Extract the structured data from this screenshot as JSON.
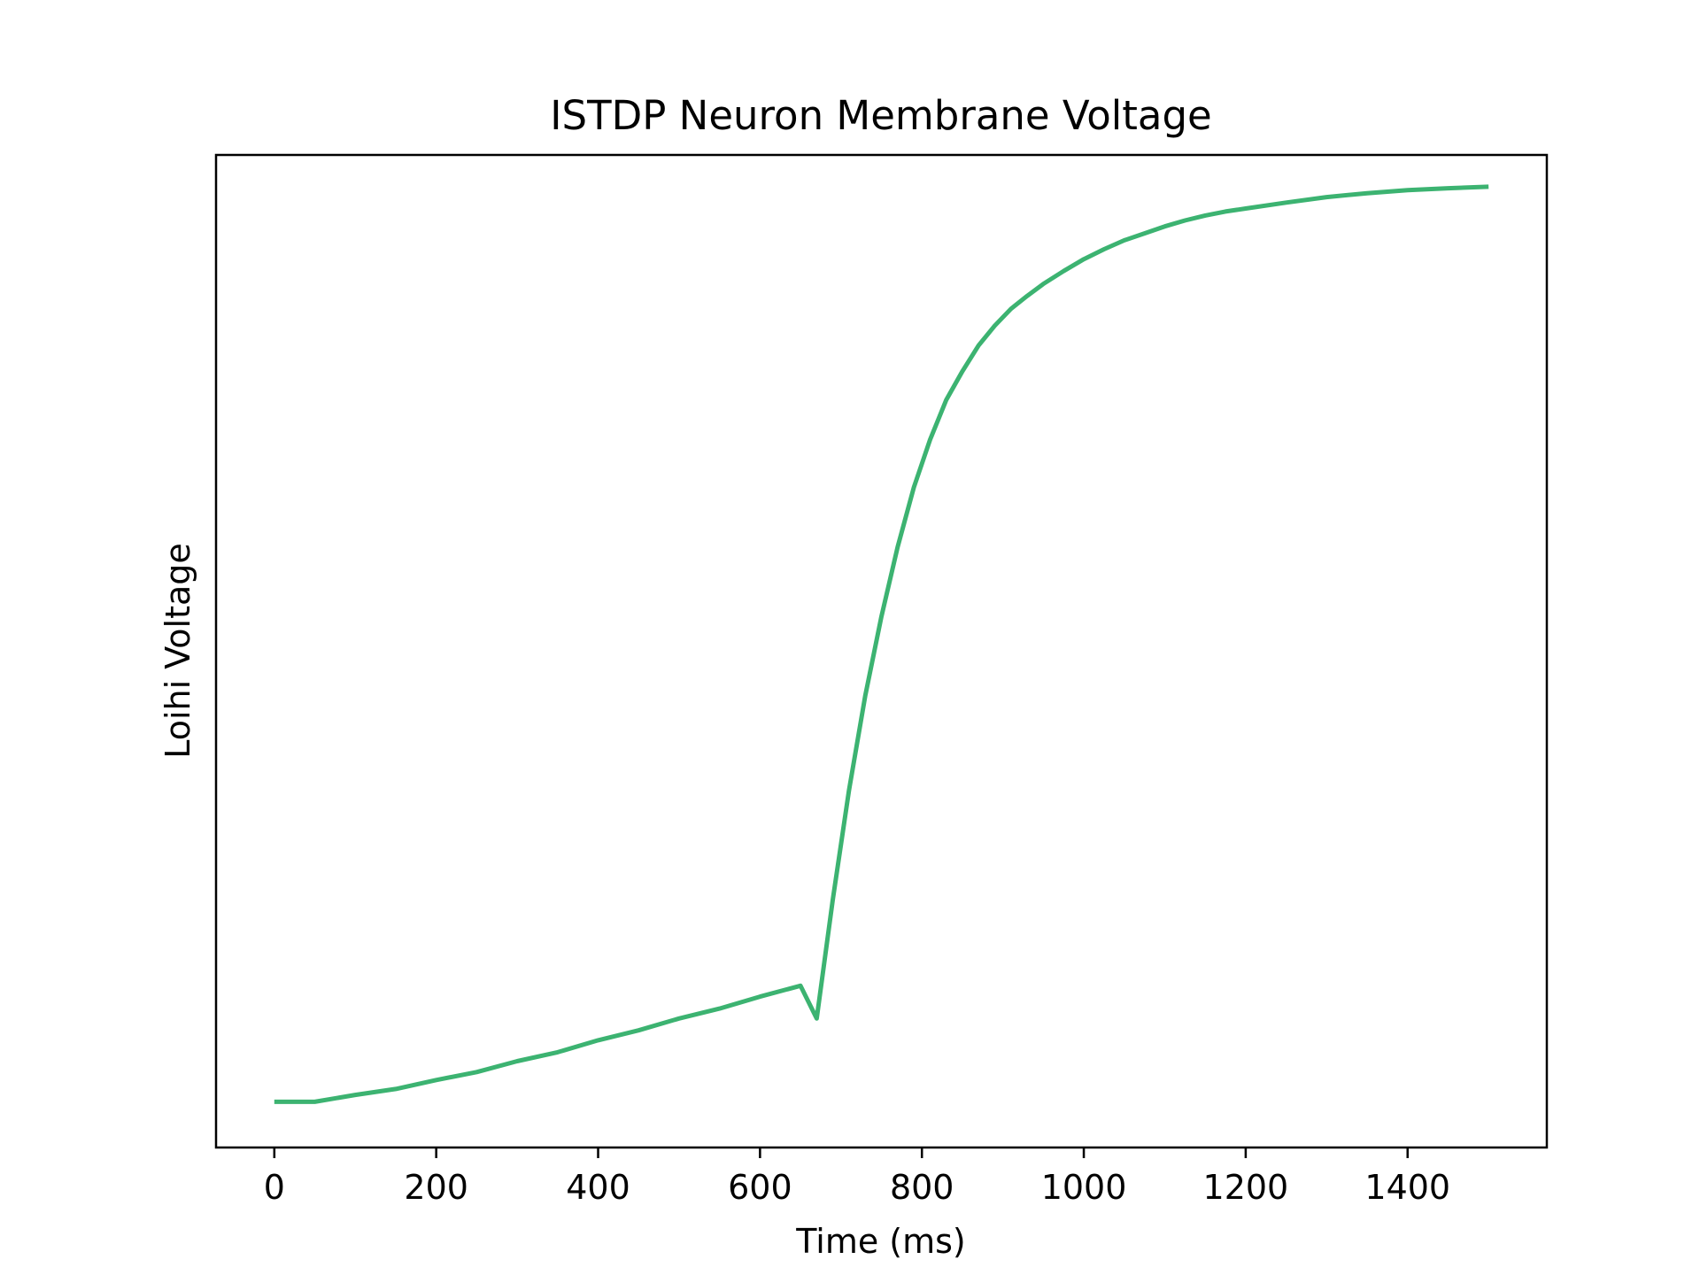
{
  "chart_data": {
    "type": "line",
    "title": "ISTDP Neuron Membrane Voltage",
    "xlabel": "Time (ms)",
    "ylabel": "Loihi Voltage",
    "xlim": [
      -72,
      1572
    ],
    "ylim": [
      0,
      1
    ],
    "xticks": [
      0,
      200,
      400,
      600,
      800,
      1000,
      1200,
      1400
    ],
    "xtick_labels": [
      "0",
      "200",
      "400",
      "600",
      "800",
      "1000",
      "1200",
      "1400"
    ],
    "yticks_visible": false,
    "grid": false,
    "series_color": "#3cb371",
    "series": [
      {
        "x": [
          0,
          50,
          100,
          150,
          200,
          250,
          300,
          350,
          400,
          450,
          500,
          550,
          600,
          650,
          670,
          690,
          710,
          730,
          750,
          770,
          790,
          810,
          830,
          850,
          870,
          890,
          910,
          930,
          950,
          975,
          1000,
          1025,
          1050,
          1075,
          1100,
          1125,
          1150,
          1175,
          1200,
          1250,
          1300,
          1350,
          1400,
          1450,
          1500
        ],
        "y": [
          0.046,
          0.046,
          0.053,
          0.059,
          0.068,
          0.076,
          0.087,
          0.096,
          0.108,
          0.118,
          0.13,
          0.14,
          0.152,
          0.163,
          0.13,
          0.25,
          0.36,
          0.455,
          0.535,
          0.605,
          0.665,
          0.713,
          0.753,
          0.782,
          0.808,
          0.828,
          0.845,
          0.858,
          0.87,
          0.883,
          0.895,
          0.905,
          0.914,
          0.921,
          0.928,
          0.934,
          0.939,
          0.943,
          0.946,
          0.952,
          0.9575,
          0.9615,
          0.9645,
          0.9665,
          0.968
        ]
      }
    ]
  }
}
